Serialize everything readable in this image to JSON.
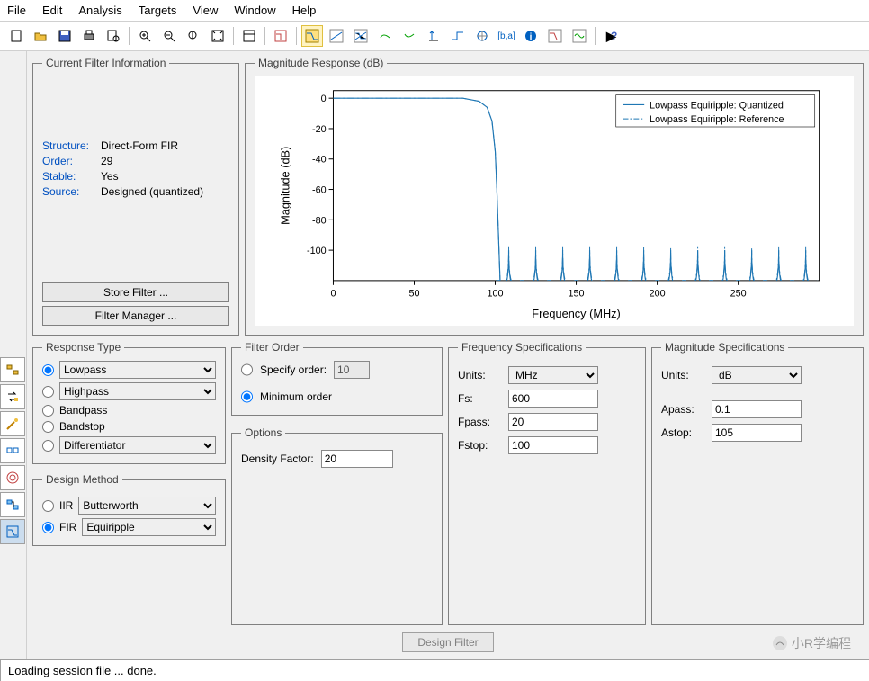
{
  "menu": {
    "items": [
      "File",
      "Edit",
      "Analysis",
      "Targets",
      "View",
      "Window",
      "Help"
    ]
  },
  "toolbar": {
    "buttons": [
      "new",
      "open",
      "save",
      "print",
      "print-preview",
      "sep",
      "zoom-in",
      "zoom-out",
      "fit",
      "pan",
      "sep",
      "layout",
      "sep",
      "plot1",
      "plot2",
      "plot3",
      "plot4",
      "plot5",
      "plot6",
      "plot7",
      "plot8",
      "plot9",
      "plot10",
      "info",
      "plot11",
      "plot12",
      "sep",
      "help"
    ]
  },
  "filterInfo": {
    "legend": "Current Filter Information",
    "structureLabel": "Structure:",
    "structure": "Direct-Form FIR",
    "orderLabel": "Order:",
    "order": "29",
    "stableLabel": "Stable:",
    "stable": "Yes",
    "sourceLabel": "Source:",
    "source": "Designed (quantized)",
    "storeBtn": "Store Filter ...",
    "managerBtn": "Filter Manager ..."
  },
  "magResponse": {
    "legend": "Magnitude Response (dB)",
    "ylabel": "Magnitude (dB)",
    "xlabel": "Frequency (MHz)",
    "yticks": [
      0,
      -20,
      -40,
      -60,
      -80,
      -100
    ],
    "xticks": [
      0,
      50,
      100,
      150,
      200,
      250
    ],
    "xlim": [
      0,
      300
    ],
    "ylim": [
      -120,
      5
    ],
    "lineColor": "#1f77b4",
    "refColor": "#1f77b4",
    "axisColor": "#000000",
    "tickFont": 11,
    "labelFont": 13,
    "legendItems": [
      "Lowpass Equiripple: Quantized",
      "Lowpass Equiripple: Reference"
    ],
    "passband": {
      "x": [
        0,
        95
      ],
      "y": [
        0,
        0
      ]
    },
    "transition": [
      [
        95,
        0
      ],
      [
        97,
        -10
      ],
      [
        99,
        -40
      ],
      [
        100,
        -80
      ],
      [
        101,
        -120
      ]
    ],
    "ripples": {
      "xstart": 100,
      "xend": 300,
      "count": 12,
      "ymin": -120,
      "ymax": -100
    }
  },
  "responseType": {
    "legend": "Response Type",
    "options": [
      "Lowpass",
      "Highpass",
      "Bandpass",
      "Bandstop",
      "Differentiator"
    ],
    "selected": "Lowpass",
    "dropdowns": {
      "Lowpass": true,
      "Highpass": true,
      "Differentiator": true
    }
  },
  "designMethod": {
    "legend": "Design Method",
    "iirLabel": "IIR",
    "iirValue": "Butterworth",
    "firLabel": "FIR",
    "firValue": "Equiripple",
    "selected": "FIR"
  },
  "filterOrder": {
    "legend": "Filter Order",
    "specifyLabel": "Specify order:",
    "specifyValue": "10",
    "minLabel": "Minimum order",
    "selected": "min"
  },
  "options": {
    "legend": "Options",
    "densityLabel": "Density Factor:",
    "densityValue": "20"
  },
  "freqSpec": {
    "legend": "Frequency Specifications",
    "unitsLabel": "Units:",
    "units": "MHz",
    "fsLabel": "Fs:",
    "fs": "600",
    "fpassLabel": "Fpass:",
    "fpass": "20",
    "fstopLabel": "Fstop:",
    "fstop": "100"
  },
  "magSpec": {
    "legend": "Magnitude Specifications",
    "unitsLabel": "Units:",
    "units": "dB",
    "apassLabel": "Apass:",
    "apass": "0.1",
    "astopLabel": "Astop:",
    "astop": "105"
  },
  "designBtn": "Design Filter",
  "status": "Loading session file ... done.",
  "watermark": "小R学编程"
}
